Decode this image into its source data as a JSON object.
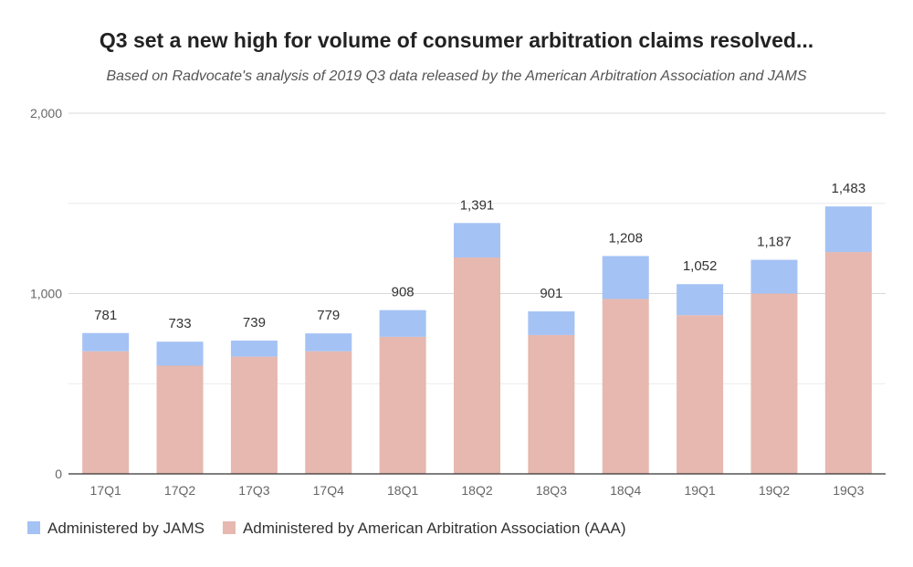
{
  "chart_data": {
    "type": "bar",
    "stacked": true,
    "title": "Q3 set a new high for volume of consumer arbitration claims resolved...",
    "subtitle": "Based on Radvocate's analysis of 2019 Q3 data released by the American Arbitration Association and JAMS",
    "categories": [
      "17Q1",
      "17Q2",
      "17Q3",
      "17Q4",
      "18Q1",
      "18Q2",
      "18Q3",
      "18Q4",
      "19Q1",
      "19Q2",
      "19Q3"
    ],
    "series": [
      {
        "name": "Administered by American Arbitration Association (AAA)",
        "color": "#e6b8af",
        "values": [
          680,
          600,
          650,
          680,
          760,
          1200,
          770,
          970,
          880,
          1000,
          1230
        ]
      },
      {
        "name": "Administered by JAMS",
        "color": "#a4c2f4",
        "values": [
          101,
          133,
          89,
          99,
          148,
          191,
          131,
          238,
          172,
          187,
          253
        ]
      }
    ],
    "totals": [
      "781",
      "733",
      "739",
      "779",
      "908",
      "1,391",
      "901",
      "1,208",
      "1,052",
      "1,187",
      "1,483"
    ],
    "ylim": [
      0,
      2000
    ],
    "yticks": [
      0,
      1000,
      2000
    ],
    "ytick_labels": [
      "0",
      "1,000",
      "2,000"
    ],
    "minor_gridlines": [
      500,
      1500
    ],
    "grid": true,
    "legend_position": "bottom-left",
    "legend": [
      {
        "label": "Administered by JAMS",
        "color": "#a4c2f4"
      },
      {
        "label": "Administered by American Arbitration Association (AAA)",
        "color": "#e6b8af"
      }
    ]
  }
}
